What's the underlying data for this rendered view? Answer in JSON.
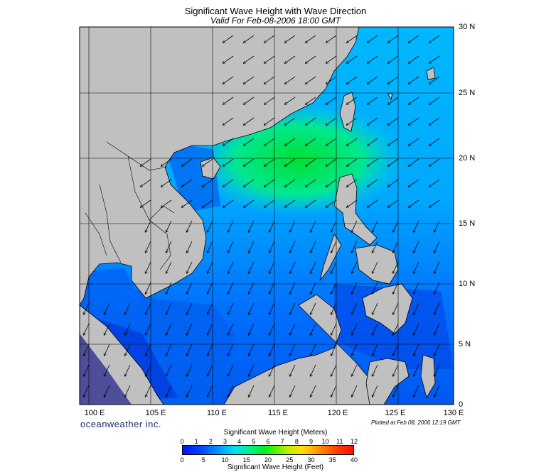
{
  "title": "Significant Wave Height with Wave Direction",
  "subtitle": "Valid For Feb-08-2006 18:00 GMT",
  "latitude_labels": [
    "30 N",
    "25 N",
    "20 N",
    "15 N",
    "10 N",
    "5 N",
    "0"
  ],
  "longitude_labels": [
    "100 E",
    "105 E",
    "110 E",
    "115 E",
    "120 E",
    "125 E",
    "130 E"
  ],
  "brand": "oceanweather inc.",
  "plotted": "Plotted at Feb 08, 2006 12:19 GMT",
  "legend": {
    "meters_title": "Significant Wave Height (Meters)",
    "feet_title": "Significant Wave Height (Feet)",
    "meters_ticks": [
      "0",
      "1",
      "2",
      "3",
      "4",
      "5",
      "6",
      "7",
      "8",
      "9",
      "10",
      "11",
      "12"
    ],
    "feet_ticks": [
      "0",
      "5",
      "10",
      "15",
      "20",
      "25",
      "30",
      "35",
      "40"
    ]
  },
  "colors": {
    "land": "#c0c0c0",
    "deep_blue": "#0030e0",
    "blue": "#0070ff",
    "cyan": "#00c8ff",
    "green": "#00e060",
    "grid": "#000000"
  },
  "map_extent": {
    "lon_min": 100,
    "lon_max": 130,
    "lat_min": 0,
    "lat_max": 30
  }
}
